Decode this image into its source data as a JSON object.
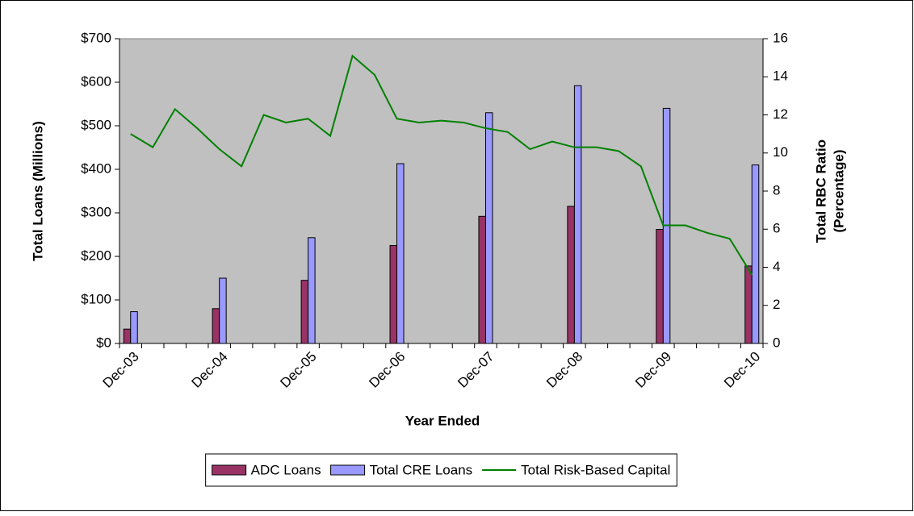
{
  "chart_data": {
    "type": "bar",
    "x_label": "Year Ended",
    "y_label": "Total Loans (Millions)",
    "y2_label": [
      "Total RBC Ratio",
      "(Percentage)"
    ],
    "categories": [
      "Dec-03",
      null,
      null,
      null,
      "Dec-04",
      null,
      null,
      null,
      "Dec-05",
      null,
      null,
      null,
      "Dec-06",
      null,
      null,
      null,
      "Dec-07",
      null,
      null,
      null,
      "Dec-08",
      null,
      null,
      null,
      "Dec-09",
      null,
      null,
      null,
      "Dec-10"
    ],
    "series": [
      {
        "name": "ADC Loans",
        "color": "#993366",
        "type": "bar",
        "values": [
          33,
          null,
          null,
          null,
          80,
          null,
          null,
          null,
          145,
          null,
          null,
          null,
          225,
          null,
          null,
          null,
          292,
          null,
          null,
          null,
          315,
          null,
          null,
          null,
          262,
          null,
          null,
          null,
          178
        ]
      },
      {
        "name": "Total CRE Loans",
        "color": "#9999ff",
        "type": "bar",
        "values": [
          73,
          null,
          null,
          null,
          150,
          null,
          null,
          null,
          243,
          null,
          null,
          null,
          413,
          null,
          null,
          null,
          530,
          null,
          null,
          null,
          592,
          null,
          null,
          null,
          540,
          null,
          null,
          null,
          410
        ]
      },
      {
        "name": "Total Risk-Based Capital",
        "color": "#008000",
        "type": "line",
        "axis": "y2",
        "values": [
          11.0,
          10.3,
          12.3,
          11.3,
          10.2,
          9.3,
          12.0,
          11.6,
          11.8,
          10.9,
          15.1,
          14.1,
          11.8,
          11.6,
          11.7,
          11.6,
          11.3,
          11.1,
          10.2,
          10.6,
          10.3,
          10.3,
          10.1,
          9.3,
          6.2,
          6.2,
          5.8,
          5.5,
          3.6
        ]
      }
    ],
    "ylim": [
      0,
      700
    ],
    "yticks": [
      {
        "value": 0,
        "label": "$0"
      },
      {
        "value": 100,
        "label": "$100"
      },
      {
        "value": 200,
        "label": "$200"
      },
      {
        "value": 300,
        "label": "$300"
      },
      {
        "value": 400,
        "label": "$400"
      },
      {
        "value": 500,
        "label": "$500"
      },
      {
        "value": 600,
        "label": "$600"
      },
      {
        "value": 700,
        "label": "$700"
      }
    ],
    "y2lim": [
      0,
      16
    ],
    "y2ticks": [
      0,
      2,
      4,
      6,
      8,
      10,
      12,
      14,
      16
    ],
    "plot_background": "#c0c0c0",
    "legend": "bottom"
  }
}
